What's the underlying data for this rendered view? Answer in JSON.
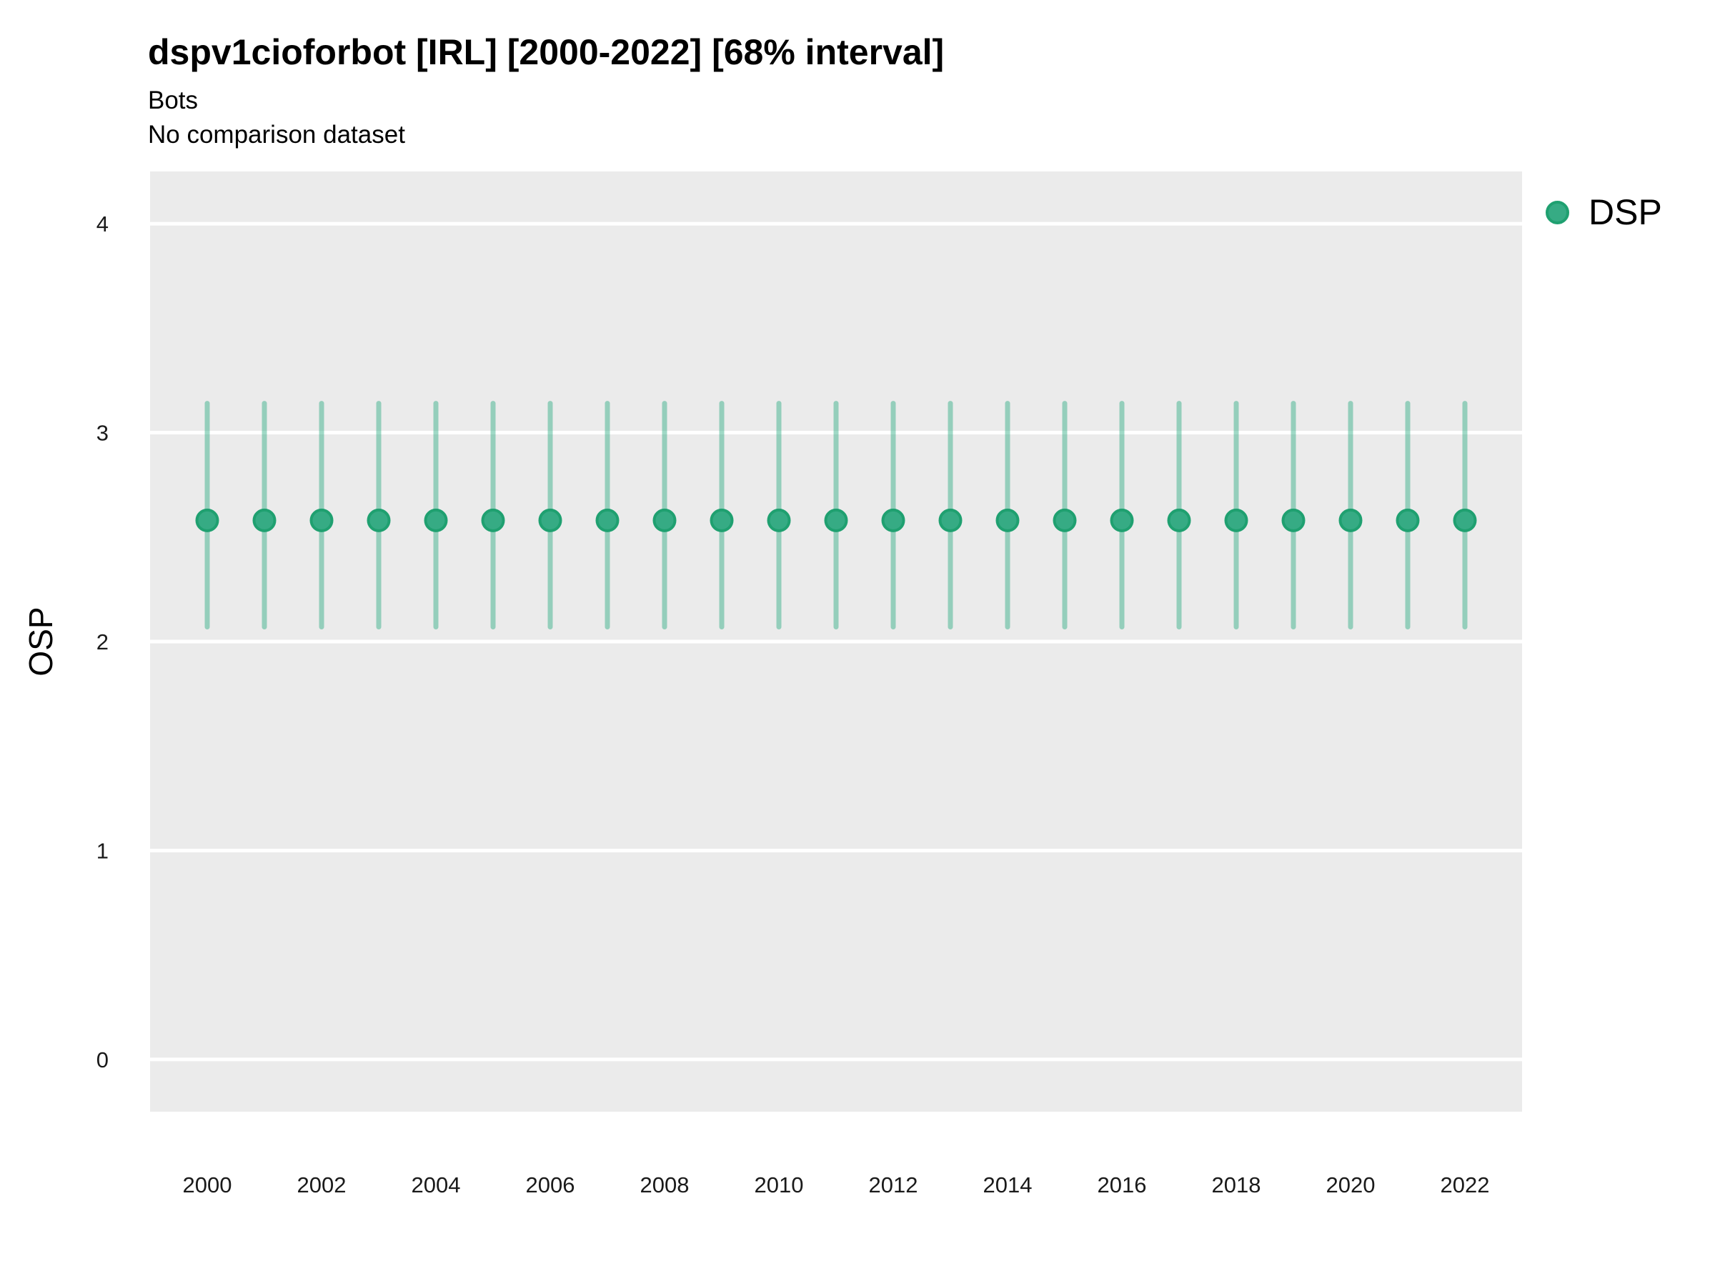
{
  "header": {
    "title": "dspv1cioforbot [IRL] [2000-2022] [68% interval]",
    "subtitle": "Bots",
    "note": "No comparison dataset"
  },
  "legend": {
    "position": "right-top",
    "items": [
      {
        "label": "DSP",
        "color": "#36ab84",
        "edge_color": "#1fa070",
        "marker": "circle-icon"
      }
    ]
  },
  "colors": {
    "panel_background": "#EBEBEB",
    "gridline": "#FFFFFF",
    "title_text": "#000000",
    "tick_text": "#1a1a1a"
  },
  "chart_data": {
    "type": "scatter",
    "title": "dspv1cioforbot [IRL] [2000-2022] [68% interval]",
    "subtitle": "Bots",
    "note": "No comparison dataset",
    "interval": "68%",
    "xlabel": "",
    "ylabel": "OSP",
    "xlim": [
      1999,
      2023
    ],
    "ylim": [
      -0.25,
      4.25
    ],
    "xticks": [
      2000,
      2002,
      2004,
      2006,
      2008,
      2010,
      2012,
      2014,
      2016,
      2018,
      2020,
      2022
    ],
    "yticks": [
      0,
      1,
      2,
      3,
      4
    ],
    "grid": "horizontal-major-only",
    "legend_position": "right-top",
    "series": [
      {
        "name": "DSP",
        "color": "#36ab84",
        "edge_color": "#1fa070",
        "interval_color": "#2aab80",
        "interval_opacity": 0.45,
        "x": [
          2000,
          2001,
          2002,
          2003,
          2004,
          2005,
          2006,
          2007,
          2008,
          2009,
          2010,
          2011,
          2012,
          2013,
          2014,
          2015,
          2016,
          2017,
          2018,
          2019,
          2020,
          2021,
          2022
        ],
        "y": [
          2.58,
          2.58,
          2.58,
          2.58,
          2.58,
          2.58,
          2.58,
          2.58,
          2.58,
          2.58,
          2.58,
          2.58,
          2.58,
          2.58,
          2.58,
          2.58,
          2.58,
          2.58,
          2.58,
          2.58,
          2.58,
          2.58,
          2.58
        ],
        "y_lower": [
          2.07,
          2.07,
          2.07,
          2.07,
          2.07,
          2.07,
          2.07,
          2.07,
          2.07,
          2.07,
          2.07,
          2.07,
          2.07,
          2.07,
          2.07,
          2.07,
          2.07,
          2.07,
          2.07,
          2.07,
          2.07,
          2.07,
          2.07
        ],
        "y_upper": [
          3.14,
          3.14,
          3.14,
          3.14,
          3.14,
          3.14,
          3.14,
          3.14,
          3.14,
          3.14,
          3.14,
          3.14,
          3.14,
          3.14,
          3.14,
          3.14,
          3.14,
          3.14,
          3.14,
          3.14,
          3.14,
          3.14,
          3.14
        ]
      }
    ]
  }
}
